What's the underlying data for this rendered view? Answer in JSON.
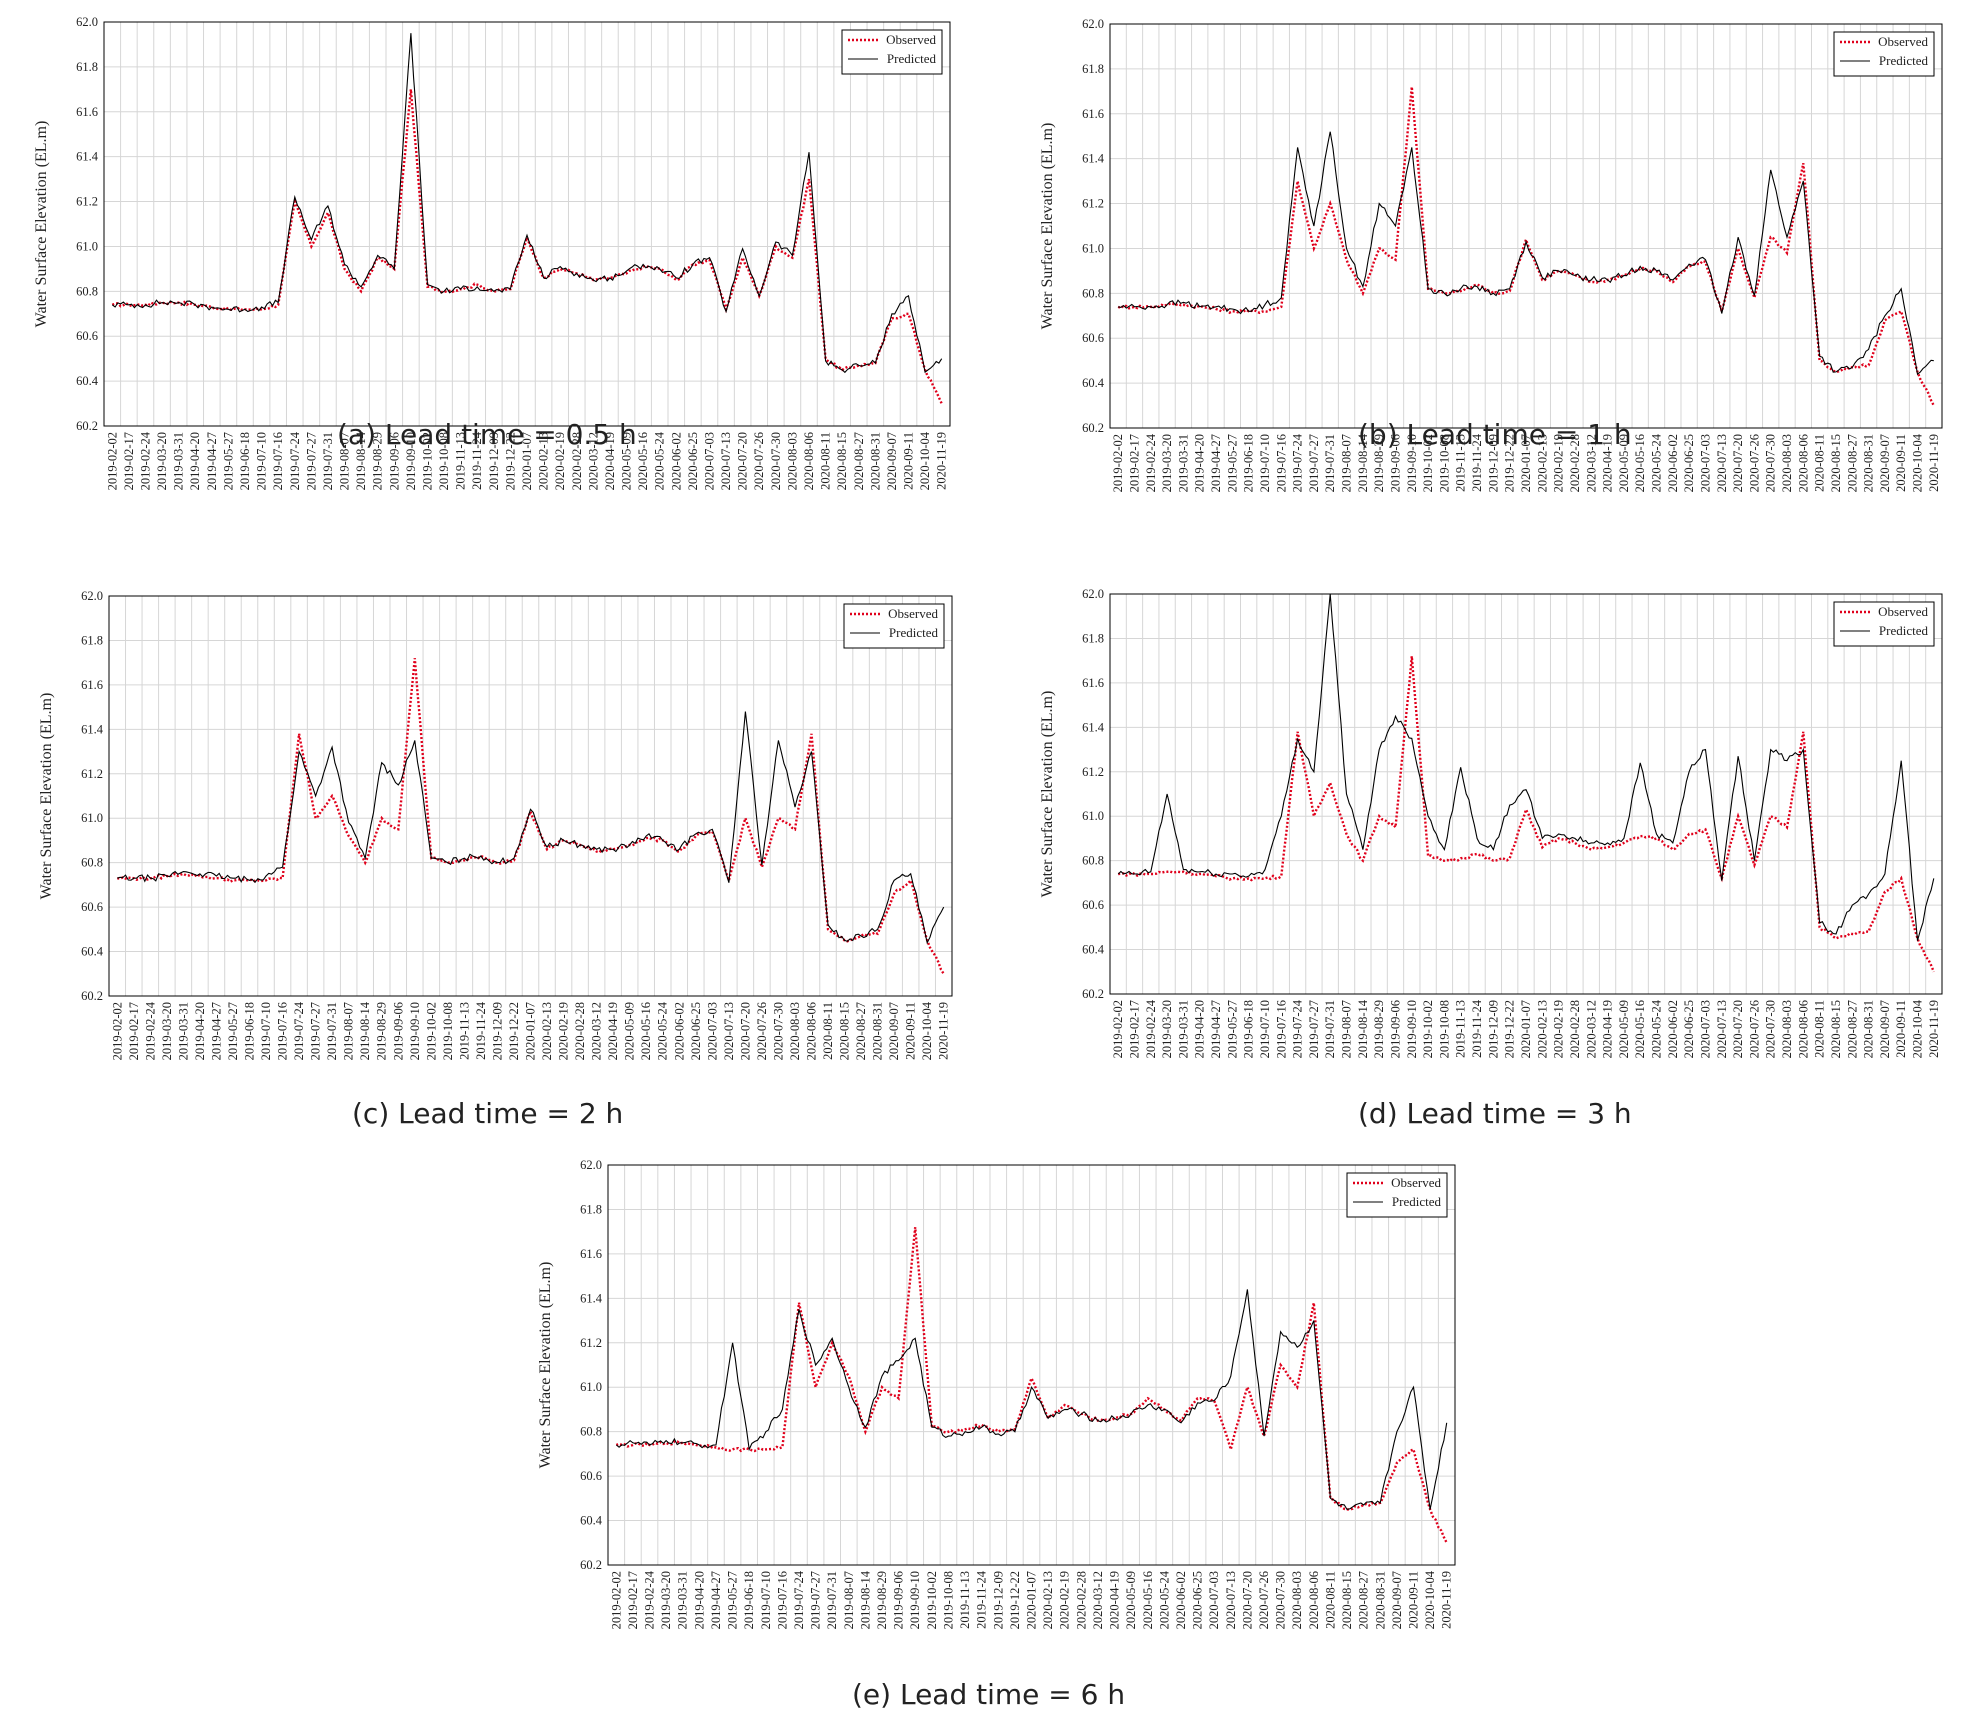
{
  "figure": {
    "colors": {
      "observed": "#e0001b",
      "predicted": "#000000",
      "grid": "#d6d6d6",
      "frame": "#000000"
    },
    "legend_position": "top-right"
  },
  "chart_data": [
    {
      "type": "line",
      "caption": "(a) Lead time = 0.5 h",
      "xlabel": "",
      "ylabel": "Water Surface Elevation (EL.m)",
      "ylim": [
        60.2,
        62.0
      ],
      "ytick_step": 0.2,
      "grid": true,
      "legend": [
        "Observed",
        "Predicted"
      ],
      "x_ticks": [
        "2019-02-02",
        "2019-02-17",
        "2019-02-24",
        "2019-03-20",
        "2019-03-31",
        "2019-04-20",
        "2019-04-27",
        "2019-05-27",
        "2019-06-18",
        "2019-07-10",
        "2019-07-16",
        "2019-07-24",
        "2019-07-27",
        "2019-07-31",
        "2019-08-07",
        "2019-08-14",
        "2019-08-29",
        "2019-09-06",
        "2019-09-10",
        "2019-10-02",
        "2019-10-08",
        "2019-11-13",
        "2019-11-24",
        "2019-12-09",
        "2019-12-22",
        "2020-01-07",
        "2020-02-13",
        "2020-02-19",
        "2020-02-28",
        "2020-03-12",
        "2020-04-19",
        "2020-05-09",
        "2020-05-16",
        "2020-05-24",
        "2020-06-02",
        "2020-06-25",
        "2020-07-03",
        "2020-07-13",
        "2020-07-20",
        "2020-07-26",
        "2020-07-30",
        "2020-08-03",
        "2020-08-06",
        "2020-08-11",
        "2020-08-15",
        "2020-08-27",
        "2020-08-31",
        "2020-09-07",
        "2020-09-11",
        "2020-10-04",
        "2020-11-19"
      ],
      "series": [
        {
          "name": "Observed",
          "values": [
            60.74,
            60.74,
            60.74,
            60.75,
            60.75,
            60.74,
            60.73,
            60.72,
            60.72,
            60.72,
            60.74,
            61.2,
            61.0,
            61.15,
            60.9,
            60.8,
            60.95,
            60.9,
            61.7,
            60.82,
            60.8,
            60.81,
            60.83,
            60.8,
            60.81,
            61.04,
            60.86,
            60.9,
            60.88,
            60.85,
            60.86,
            60.88,
            60.91,
            60.9,
            60.85,
            60.92,
            60.94,
            60.72,
            60.95,
            60.78,
            61.0,
            60.95,
            61.3,
            60.5,
            60.45,
            60.47,
            60.48,
            60.68,
            60.7,
            60.45,
            60.3
          ]
        },
        {
          "name": "Predicted",
          "values": [
            60.74,
            60.74,
            60.74,
            60.75,
            60.75,
            60.74,
            60.73,
            60.72,
            60.72,
            60.73,
            60.75,
            61.22,
            61.03,
            61.18,
            60.92,
            60.82,
            60.96,
            60.9,
            61.95,
            60.83,
            60.8,
            60.81,
            60.82,
            60.8,
            60.81,
            61.05,
            60.86,
            60.91,
            60.88,
            60.85,
            60.86,
            60.89,
            60.92,
            60.9,
            60.86,
            60.92,
            60.95,
            60.71,
            60.99,
            60.78,
            61.02,
            60.96,
            61.42,
            60.49,
            60.45,
            60.47,
            60.48,
            60.7,
            60.78,
            60.44,
            60.5
          ]
        }
      ]
    },
    {
      "type": "line",
      "caption": "(b) Lead time = 1 h",
      "xlabel": "",
      "ylabel": "Water Surface Elevation (EL.m)",
      "ylim": [
        60.2,
        62.0
      ],
      "ytick_step": 0.2,
      "grid": true,
      "legend": [
        "Observed",
        "Predicted"
      ],
      "x_ticks": [
        "2019-02-02",
        "2019-02-17",
        "2019-02-24",
        "2019-03-20",
        "2019-03-31",
        "2019-04-20",
        "2019-04-27",
        "2019-05-27",
        "2019-06-18",
        "2019-07-10",
        "2019-07-16",
        "2019-07-24",
        "2019-07-27",
        "2019-07-31",
        "2019-08-07",
        "2019-08-14",
        "2019-08-29",
        "2019-09-06",
        "2019-09-10",
        "2019-10-02",
        "2019-10-08",
        "2019-11-13",
        "2019-11-24",
        "2019-12-09",
        "2019-12-22",
        "2020-01-07",
        "2020-02-13",
        "2020-02-19",
        "2020-02-28",
        "2020-03-12",
        "2020-04-19",
        "2020-05-09",
        "2020-05-16",
        "2020-05-24",
        "2020-06-02",
        "2020-06-25",
        "2020-07-03",
        "2020-07-13",
        "2020-07-20",
        "2020-07-26",
        "2020-07-30",
        "2020-08-03",
        "2020-08-06",
        "2020-08-11",
        "2020-08-15",
        "2020-08-27",
        "2020-08-31",
        "2020-09-07",
        "2020-09-11",
        "2020-10-04",
        "2020-11-19"
      ],
      "series": [
        {
          "name": "Observed",
          "values": [
            60.74,
            60.74,
            60.74,
            60.75,
            60.75,
            60.74,
            60.73,
            60.72,
            60.72,
            60.72,
            60.74,
            61.3,
            61.0,
            61.2,
            60.95,
            60.8,
            61.0,
            60.95,
            61.72,
            60.82,
            60.8,
            60.81,
            60.84,
            60.8,
            60.81,
            61.04,
            60.86,
            60.9,
            60.88,
            60.85,
            60.86,
            60.88,
            60.91,
            60.9,
            60.85,
            60.92,
            60.94,
            60.72,
            61.0,
            60.78,
            61.05,
            60.98,
            61.38,
            60.5,
            60.45,
            60.47,
            60.48,
            60.68,
            60.72,
            60.45,
            60.3
          ]
        },
        {
          "name": "Predicted",
          "values": [
            60.74,
            60.74,
            60.74,
            60.75,
            60.76,
            60.74,
            60.74,
            60.73,
            60.72,
            60.75,
            60.78,
            61.45,
            61.1,
            61.52,
            61.0,
            60.83,
            61.2,
            61.1,
            61.45,
            60.82,
            60.8,
            60.82,
            60.83,
            60.8,
            60.82,
            61.03,
            60.87,
            60.9,
            60.88,
            60.86,
            60.86,
            60.88,
            60.92,
            60.9,
            60.86,
            60.93,
            60.95,
            60.71,
            61.05,
            60.79,
            61.35,
            61.05,
            61.3,
            60.52,
            60.45,
            60.47,
            60.55,
            60.7,
            60.82,
            60.44,
            60.5
          ]
        }
      ]
    },
    {
      "type": "line",
      "caption": "(c) Lead time = 2 h",
      "xlabel": "",
      "ylabel": "Water Surface Elevation (EL.m)",
      "ylim": [
        60.2,
        62.0
      ],
      "ytick_step": 0.2,
      "grid": true,
      "legend": [
        "Observed",
        "Predicted"
      ],
      "x_ticks": [
        "2019-02-02",
        "2019-02-17",
        "2019-02-24",
        "2019-03-20",
        "2019-03-31",
        "2019-04-20",
        "2019-04-27",
        "2019-05-27",
        "2019-06-18",
        "2019-07-10",
        "2019-07-16",
        "2019-07-24",
        "2019-07-27",
        "2019-07-31",
        "2019-08-07",
        "2019-08-14",
        "2019-08-29",
        "2019-09-06",
        "2019-09-10",
        "2019-10-02",
        "2019-10-08",
        "2019-11-13",
        "2019-11-24",
        "2019-12-09",
        "2019-12-22",
        "2020-01-07",
        "2020-02-13",
        "2020-02-19",
        "2020-02-28",
        "2020-03-12",
        "2020-04-19",
        "2020-05-09",
        "2020-05-16",
        "2020-05-24",
        "2020-06-02",
        "2020-06-25",
        "2020-07-03",
        "2020-07-13",
        "2020-07-20",
        "2020-07-26",
        "2020-07-30",
        "2020-08-03",
        "2020-08-06",
        "2020-08-11",
        "2020-08-15",
        "2020-08-27",
        "2020-08-31",
        "2020-09-07",
        "2020-09-11",
        "2020-10-04",
        "2020-11-19"
      ],
      "series": [
        {
          "name": "Observed",
          "values": [
            60.73,
            60.73,
            60.73,
            60.74,
            60.75,
            60.74,
            60.73,
            60.72,
            60.72,
            60.72,
            60.73,
            61.38,
            61.0,
            61.1,
            60.92,
            60.8,
            61.0,
            60.95,
            61.72,
            60.82,
            60.8,
            60.81,
            60.83,
            60.8,
            60.81,
            61.03,
            60.86,
            60.9,
            60.88,
            60.85,
            60.86,
            60.88,
            60.91,
            60.9,
            60.85,
            60.92,
            60.94,
            60.72,
            61.0,
            60.78,
            61.0,
            60.95,
            61.38,
            60.5,
            60.45,
            60.47,
            60.48,
            60.66,
            60.72,
            60.45,
            60.3
          ]
        },
        {
          "name": "Predicted",
          "values": [
            60.73,
            60.73,
            60.73,
            60.74,
            60.76,
            60.75,
            60.74,
            60.73,
            60.72,
            60.74,
            60.78,
            61.3,
            61.1,
            61.32,
            60.98,
            60.82,
            61.25,
            61.15,
            61.35,
            60.82,
            60.8,
            60.82,
            60.83,
            60.8,
            60.82,
            61.04,
            60.87,
            60.9,
            60.88,
            60.86,
            60.86,
            60.88,
            60.92,
            60.9,
            60.86,
            60.93,
            60.95,
            60.71,
            61.48,
            60.79,
            61.35,
            61.05,
            61.3,
            60.52,
            60.45,
            60.47,
            60.5,
            60.72,
            60.75,
            60.44,
            60.6
          ]
        }
      ]
    },
    {
      "type": "line",
      "caption": "(d) Lead time = 3 h",
      "xlabel": "",
      "ylabel": "Water Surface Elevation (EL.m)",
      "ylim": [
        60.2,
        62.0
      ],
      "ytick_step": 0.2,
      "grid": true,
      "legend": [
        "Observed",
        "Predicted"
      ],
      "x_ticks": [
        "2019-02-02",
        "2019-02-17",
        "2019-02-24",
        "2019-03-20",
        "2019-03-31",
        "2019-04-20",
        "2019-04-27",
        "2019-05-27",
        "2019-06-18",
        "2019-07-10",
        "2019-07-16",
        "2019-07-24",
        "2019-07-27",
        "2019-07-31",
        "2019-08-07",
        "2019-08-14",
        "2019-08-29",
        "2019-09-06",
        "2019-09-10",
        "2019-10-02",
        "2019-10-08",
        "2019-11-13",
        "2019-11-24",
        "2019-12-09",
        "2019-12-22",
        "2020-01-07",
        "2020-02-13",
        "2020-02-19",
        "2020-02-28",
        "2020-03-12",
        "2020-04-19",
        "2020-05-09",
        "2020-05-16",
        "2020-05-24",
        "2020-06-02",
        "2020-06-25",
        "2020-07-03",
        "2020-07-13",
        "2020-07-20",
        "2020-07-26",
        "2020-07-30",
        "2020-08-03",
        "2020-08-06",
        "2020-08-11",
        "2020-08-15",
        "2020-08-27",
        "2020-08-31",
        "2020-09-07",
        "2020-09-11",
        "2020-10-04",
        "2020-11-19"
      ],
      "series": [
        {
          "name": "Observed",
          "values": [
            60.74,
            60.74,
            60.74,
            60.75,
            60.75,
            60.74,
            60.73,
            60.72,
            60.72,
            60.72,
            60.73,
            61.38,
            61.0,
            61.15,
            60.92,
            60.8,
            61.0,
            60.95,
            61.72,
            60.82,
            60.8,
            60.81,
            60.83,
            60.8,
            60.81,
            61.03,
            60.86,
            60.9,
            60.88,
            60.85,
            60.86,
            60.88,
            60.91,
            60.9,
            60.85,
            60.92,
            60.94,
            60.72,
            61.0,
            60.78,
            61.0,
            60.95,
            61.38,
            60.5,
            60.45,
            60.47,
            60.48,
            60.66,
            60.72,
            60.45,
            60.3
          ]
        },
        {
          "name": "Predicted",
          "values": [
            60.74,
            60.74,
            60.75,
            61.1,
            60.76,
            60.75,
            60.74,
            60.74,
            60.73,
            60.76,
            61.0,
            61.35,
            61.2,
            62.0,
            61.1,
            60.85,
            61.3,
            61.45,
            61.35,
            61.0,
            60.85,
            61.22,
            60.9,
            60.85,
            61.05,
            61.12,
            60.9,
            60.92,
            60.9,
            60.88,
            60.88,
            60.9,
            61.24,
            60.92,
            60.88,
            61.2,
            61.3,
            60.71,
            61.27,
            60.8,
            61.3,
            61.25,
            61.3,
            60.52,
            60.47,
            60.6,
            60.65,
            60.74,
            61.25,
            60.44,
            60.72
          ]
        }
      ]
    },
    {
      "type": "line",
      "caption": "(e) Lead time = 6 h",
      "xlabel": "",
      "ylabel": "Water Surface Elevation (EL.m)",
      "ylim": [
        60.2,
        62.0
      ],
      "ytick_step": 0.2,
      "grid": true,
      "legend": [
        "Observed",
        "Predicted"
      ],
      "x_ticks": [
        "2019-02-02",
        "2019-02-17",
        "2019-02-24",
        "2019-03-20",
        "2019-03-31",
        "2019-04-20",
        "2019-04-27",
        "2019-05-27",
        "2019-06-18",
        "2019-07-10",
        "2019-07-16",
        "2019-07-24",
        "2019-07-27",
        "2019-07-31",
        "2019-08-07",
        "2019-08-14",
        "2019-08-29",
        "2019-09-06",
        "2019-09-10",
        "2019-10-02",
        "2019-10-08",
        "2019-11-13",
        "2019-11-24",
        "2019-12-09",
        "2019-12-22",
        "2020-01-07",
        "2020-02-13",
        "2020-02-19",
        "2020-02-28",
        "2020-03-12",
        "2020-04-19",
        "2020-05-09",
        "2020-05-16",
        "2020-05-24",
        "2020-06-02",
        "2020-06-25",
        "2020-07-03",
        "2020-07-13",
        "2020-07-20",
        "2020-07-26",
        "2020-07-30",
        "2020-08-03",
        "2020-08-06",
        "2020-08-11",
        "2020-08-15",
        "2020-08-27",
        "2020-08-31",
        "2020-09-07",
        "2020-09-11",
        "2020-10-04",
        "2020-11-19"
      ],
      "series": [
        {
          "name": "Observed",
          "values": [
            60.74,
            60.74,
            60.74,
            60.75,
            60.75,
            60.74,
            60.73,
            60.72,
            60.72,
            60.72,
            60.73,
            61.38,
            61.0,
            61.2,
            61.05,
            60.8,
            61.0,
            60.95,
            61.72,
            60.82,
            60.8,
            60.81,
            60.83,
            60.8,
            60.81,
            61.04,
            60.86,
            60.92,
            60.88,
            60.85,
            60.86,
            60.88,
            60.95,
            60.9,
            60.85,
            60.95,
            60.94,
            60.72,
            61.0,
            60.78,
            61.1,
            61.0,
            61.38,
            60.5,
            60.45,
            60.47,
            60.48,
            60.66,
            60.72,
            60.45,
            60.3
          ]
        },
        {
          "name": "Predicted",
          "values": [
            60.74,
            60.75,
            60.74,
            60.76,
            60.75,
            60.74,
            60.74,
            61.2,
            60.72,
            60.8,
            60.9,
            61.35,
            61.1,
            61.22,
            61.0,
            60.82,
            61.05,
            61.12,
            61.22,
            60.82,
            60.78,
            60.8,
            60.82,
            60.79,
            60.8,
            61.0,
            60.86,
            60.9,
            60.88,
            60.85,
            60.86,
            60.88,
            60.92,
            60.9,
            60.84,
            60.93,
            60.94,
            61.05,
            61.44,
            60.78,
            61.25,
            61.18,
            61.3,
            60.5,
            60.45,
            60.47,
            60.48,
            60.8,
            61.0,
            60.45,
            60.84
          ]
        }
      ]
    }
  ]
}
